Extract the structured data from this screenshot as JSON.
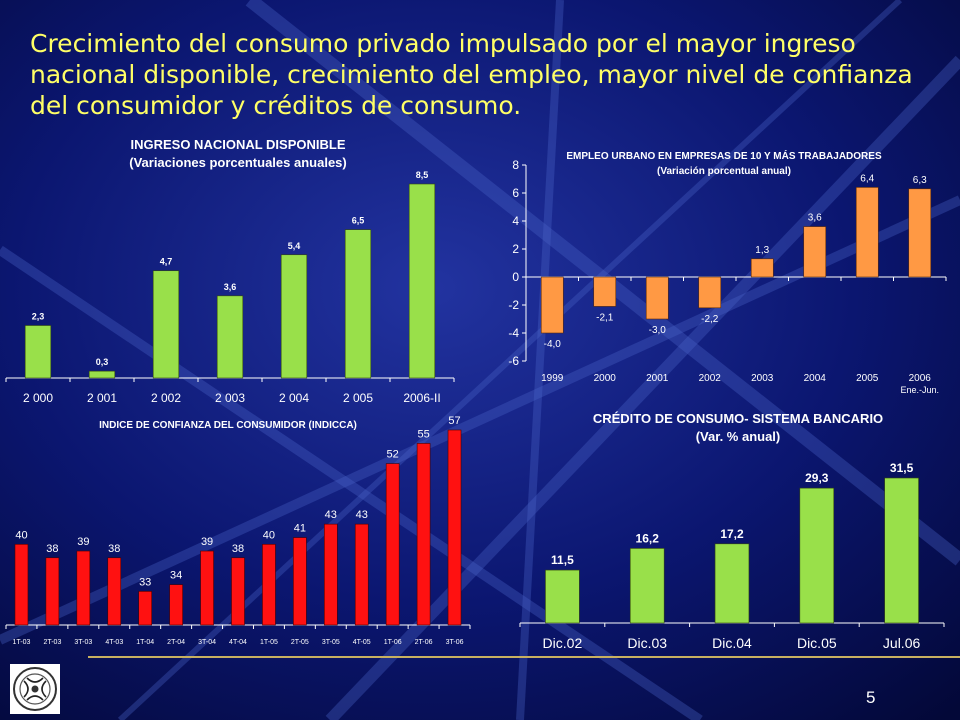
{
  "title": "Crecimiento del consumo privado impulsado por el mayor ingreso nacional disponible, crecimiento del empleo, mayor nivel de confianza del consumidor y créditos de consumo.",
  "page_number": "5",
  "colors": {
    "background": "#050b4a",
    "title": "#ffff66",
    "green": "#99e04a",
    "orange": "#ff9944",
    "red": "#ff1111"
  },
  "logo_icon": "central-bank-seal",
  "chart_data": [
    {
      "type": "bar",
      "title": "INGRESO NACIONAL DISPONIBLE",
      "subtitle": "(Variaciones porcentuales anuales)",
      "categories": [
        "2 000",
        "2 001",
        "2 002",
        "2 003",
        "2 004",
        "2 005",
        "2006-II"
      ],
      "values": [
        2.3,
        0.3,
        4.7,
        3.6,
        5.4,
        6.5,
        8.5
      ],
      "labels": [
        "2,3",
        "0,3",
        "4,7",
        "3,6",
        "5,4",
        "6,5",
        "8,5"
      ],
      "ylim": [
        0,
        8.5
      ],
      "grid": false,
      "color": "#99e04a"
    },
    {
      "type": "bar",
      "title": "EMPLEO URBANO EN EMPRESAS DE 10 Y MÁS TRABAJADORES",
      "subtitle": "(Variación porcentual anual)",
      "categories": [
        "1999",
        "2000",
        "2001",
        "2002",
        "2003",
        "2004",
        "2005",
        "2006"
      ],
      "category_note": "Ene.-Jun.",
      "values": [
        -4.0,
        -2.1,
        -3.0,
        -2.2,
        1.3,
        3.6,
        6.4,
        6.3
      ],
      "labels": [
        "-4,0",
        "-2,1",
        "-3,0",
        "-2,2",
        "1,3",
        "3,6",
        "6,4",
        "6,3"
      ],
      "ylim": [
        -6,
        8
      ],
      "yticks": [
        "8",
        "6",
        "4",
        "2",
        "0",
        "-2",
        "-4",
        "-6"
      ],
      "grid": false,
      "color": "#ff9944"
    },
    {
      "type": "bar",
      "title": "INDICE DE CONFIANZA DEL CONSUMIDOR (INDICCA)",
      "categories": [
        "1T-03",
        "2T-03",
        "3T-03",
        "4T-03",
        "1T-04",
        "2T-04",
        "3T-04",
        "4T-04",
        "1T-05",
        "2T-05",
        "3T-05",
        "4T-05",
        "1T-06",
        "2T-06",
        "3T-06"
      ],
      "values": [
        40,
        38,
        39,
        38,
        33,
        34,
        39,
        38,
        40,
        41,
        43,
        43,
        52,
        55,
        57
      ],
      "labels": [
        "40",
        "38",
        "39",
        "38",
        "33",
        "34",
        "39",
        "38",
        "40",
        "41",
        "43",
        "43",
        "52",
        "55",
        "57"
      ],
      "ylim": [
        28,
        57
      ],
      "grid": false,
      "color": "#ff1111"
    },
    {
      "type": "bar",
      "title": "CRÉDITO DE CONSUMO- SISTEMA BANCARIO",
      "subtitle": "(Var. % anual)",
      "categories": [
        "Dic.02",
        "Dic.03",
        "Dic.04",
        "Dic.05",
        "Jul.06"
      ],
      "values": [
        11.5,
        16.2,
        17.2,
        29.3,
        31.5
      ],
      "labels": [
        "11,5",
        "16,2",
        "17,2",
        "29,3",
        "31,5"
      ],
      "ylim": [
        0,
        31.5
      ],
      "grid": false,
      "color": "#99e04a"
    }
  ]
}
